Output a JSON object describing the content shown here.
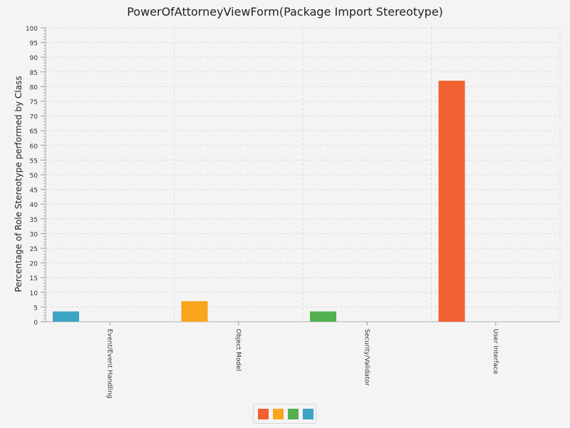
{
  "chart_data": {
    "type": "bar",
    "title": "PowerOfAttorneyViewForm(Package Import Stereotype)",
    "xlabel": "",
    "ylabel": "Percentage of Role Stereotype performed by Class",
    "ylim": [
      0,
      100
    ],
    "ytick_step": 5,
    "yticks": [
      "0",
      "5",
      "10",
      "15",
      "20",
      "25",
      "30",
      "35",
      "40",
      "45",
      "50",
      "55",
      "60",
      "65",
      "70",
      "75",
      "80",
      "85",
      "90",
      "95",
      "100"
    ],
    "categories": [
      "Event/Event Handling",
      "Object Model",
      "Security/Validator",
      "User Interface"
    ],
    "series": [
      {
        "values": [
          0,
          0,
          0,
          82
        ],
        "color": "#f06030"
      },
      {
        "values": [
          0,
          7,
          0,
          0
        ],
        "color": "#f9a51d"
      },
      {
        "values": [
          0,
          0,
          3.5,
          0
        ],
        "color": "#52b04f"
      },
      {
        "values": [
          3.5,
          0,
          0,
          0
        ],
        "color": "#3ea4c4"
      }
    ],
    "grid": true,
    "legend_position": "bottom-center"
  }
}
